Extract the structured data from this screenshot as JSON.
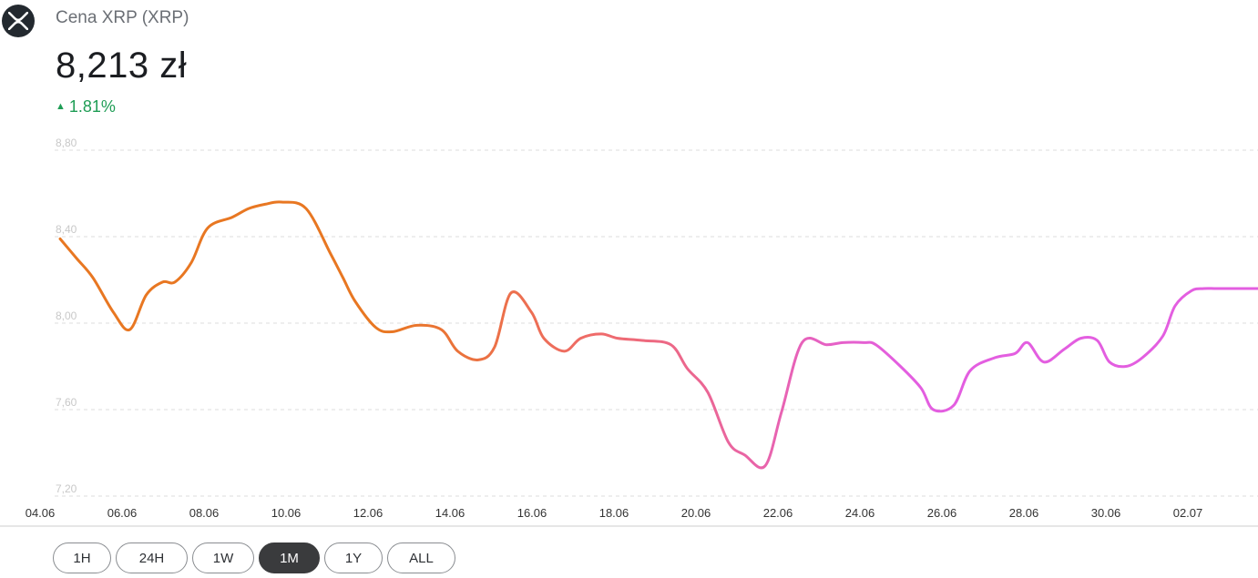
{
  "header": {
    "logo_icon": "xrp-logo-icon",
    "title": "Cena XRP (XRP)",
    "price": "8,213 zł",
    "change_arrow_icon": "triangle-up-icon",
    "change": "1.81%"
  },
  "range_selector": {
    "options": [
      "1H",
      "24H",
      "1W",
      "1M",
      "1Y",
      "ALL"
    ],
    "active": "1M"
  },
  "colors": {
    "line_start": "#e87722",
    "line_mid": "#ef6b6b",
    "line_end": "#e35ee0",
    "grid": "#dddddd",
    "axis": "#cccccc"
  },
  "chart_data": {
    "type": "line",
    "title": "",
    "xlabel": "",
    "ylabel": "",
    "xlim": [
      "04.06",
      "03.07"
    ],
    "ylim": [
      7.2,
      8.8
    ],
    "y_ticks": [
      "7,20",
      "7,60",
      "8,00",
      "8,40",
      "8,80"
    ],
    "x_ticks": [
      "04.06",
      "06.06",
      "08.06",
      "10.06",
      "12.06",
      "14.06",
      "16.06",
      "18.06",
      "20.06",
      "22.06",
      "24.06",
      "26.06",
      "28.06",
      "30.06",
      "02.07"
    ],
    "grid": true,
    "series": [
      {
        "x": [
          0,
          0.4,
          0.8,
          1.3,
          1.7,
          2.1,
          2.5,
          2.8,
          3.2,
          3.6,
          4.2,
          4.6,
          5.0,
          5.4,
          6.0,
          6.6,
          6.9,
          7.2,
          7.7,
          8.1,
          8.7,
          9.3,
          9.7,
          10.2,
          10.6,
          11.0,
          11.5,
          11.8,
          12.3,
          12.7,
          13.2,
          13.6,
          14.2,
          14.9,
          15.3,
          15.8,
          16.3,
          16.7,
          17.2,
          17.6,
          18.1,
          18.7,
          19.1,
          19.6,
          19.9,
          20.5,
          21.0,
          21.3,
          21.8,
          22.2,
          22.8,
          23.3,
          23.6,
          24.0,
          24.5,
          24.9,
          25.3,
          25.6,
          26.0,
          26.4,
          26.9,
          27.2,
          27.6,
          27.9,
          28.2,
          28.6,
          28.9,
          29.2,
          29.6,
          29.95
        ],
        "values": [
          8.39,
          8.3,
          8.21,
          8.05,
          7.97,
          8.13,
          8.19,
          8.19,
          8.28,
          8.44,
          8.49,
          8.53,
          8.55,
          8.56,
          8.53,
          8.32,
          8.21,
          8.1,
          7.98,
          7.96,
          7.99,
          7.97,
          7.87,
          7.83,
          7.89,
          8.14,
          8.05,
          7.93,
          7.87,
          7.93,
          7.95,
          7.93,
          7.92,
          7.9,
          7.79,
          7.68,
          7.45,
          7.39,
          7.34,
          7.59,
          7.91,
          7.9,
          7.91,
          7.91,
          7.9,
          7.8,
          7.7,
          7.6,
          7.62,
          7.78,
          7.84,
          7.86,
          7.91,
          7.82,
          7.88,
          7.93,
          7.92,
          7.82,
          7.8,
          7.84,
          7.94,
          8.08,
          8.15,
          8.16,
          8.16,
          8.16,
          8.16,
          8.16,
          8.16,
          8.16
        ]
      }
    ]
  }
}
